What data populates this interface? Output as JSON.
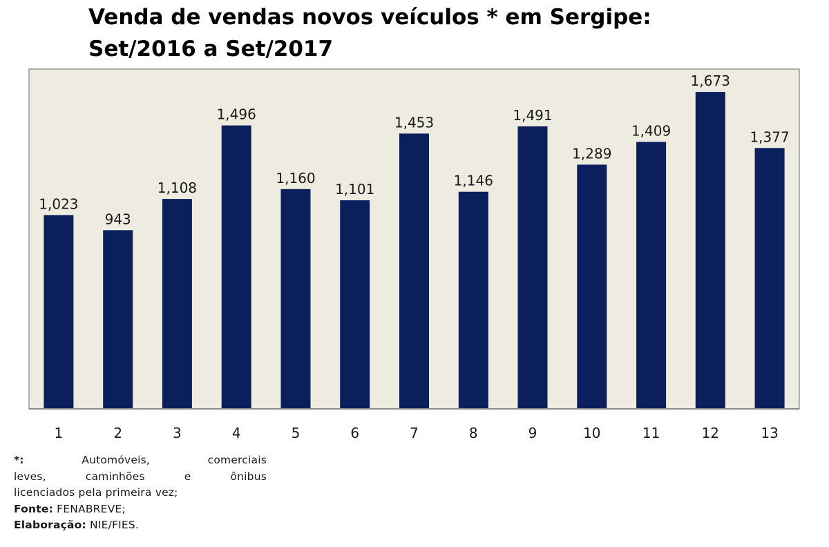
{
  "chart_data": {
    "type": "bar",
    "title_lines": [
      "Venda de vendas novos veículos * em Sergipe:",
      "Set/2016 a Set/2017"
    ],
    "categories": [
      "1",
      "2",
      "3",
      "4",
      "5",
      "6",
      "7",
      "8",
      "9",
      "10",
      "11",
      "12",
      "13"
    ],
    "values": [
      1023,
      943,
      1108,
      1496,
      1160,
      1101,
      1453,
      1146,
      1491,
      1289,
      1409,
      1673,
      1377
    ],
    "data_labels": [
      "1,023",
      "943",
      "1,108",
      "1,496",
      "1,160",
      "1,101",
      "1,453",
      "1,146",
      "1,491",
      "1,289",
      "1,409",
      "1,673",
      "1,377"
    ],
    "ylim": [
      0,
      1750
    ],
    "grid": false,
    "legend": "none",
    "colors": {
      "bar": "#0b1f5c",
      "plot_background": "#eeebe1",
      "plot_border": "#9a9a9a"
    }
  },
  "footnote": {
    "marker": "*:",
    "line1_words": [
      "Automóveis,",
      "comerciais"
    ],
    "line2_words": [
      "leves,",
      "caminhões",
      "e",
      "ônibus"
    ],
    "line3": "licenciados pela primeira vez;",
    "source_label": "Fonte:",
    "source_value": "FENABREVE;",
    "prepared_label": "Elaboração:",
    "prepared_value": "NIE/FIES."
  }
}
